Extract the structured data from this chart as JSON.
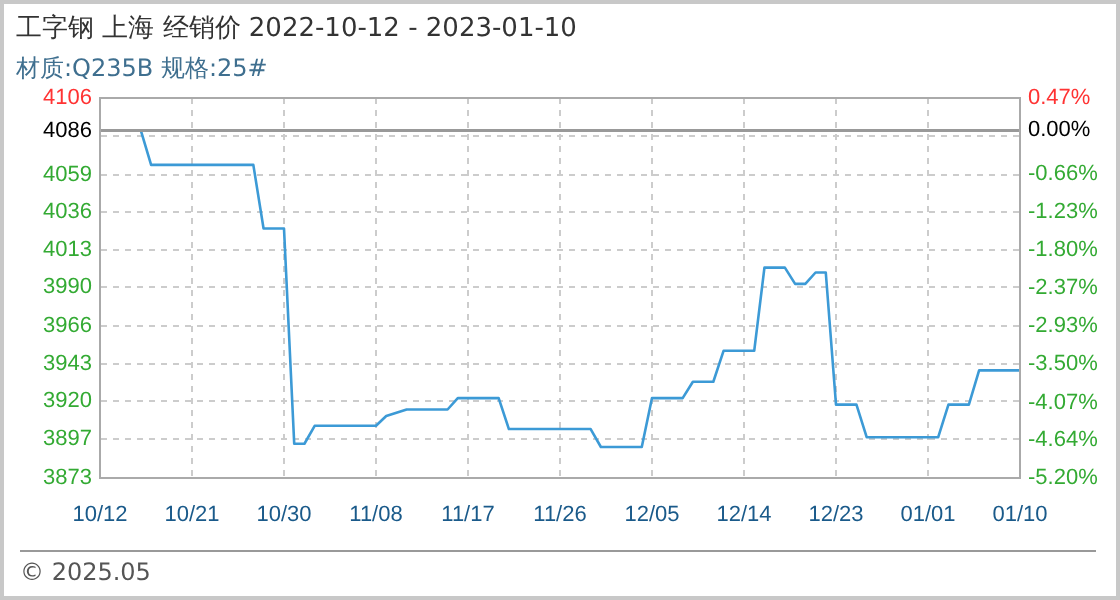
{
  "chart_data": {
    "type": "line",
    "title": "工字钢 上海 经销价 2022-10-12 - 2023-01-10",
    "subtitle": "材质:Q235B 规格:25#",
    "annotations": [
      "© 2025.05"
    ],
    "x": [
      "2022-10-12",
      "2022-10-16",
      "2022-10-17",
      "2022-10-27",
      "2022-10-28",
      "2022-10-30",
      "2022-10-31",
      "2022-11-01",
      "2022-11-02",
      "2022-11-08",
      "2022-11-09",
      "2022-11-11",
      "2022-11-15",
      "2022-11-16",
      "2022-11-20",
      "2022-11-21",
      "2022-11-29",
      "2022-11-30",
      "2022-12-04",
      "2022-12-05",
      "2022-12-08",
      "2022-12-09",
      "2022-12-11",
      "2022-12-12",
      "2022-12-15",
      "2022-12-16",
      "2022-12-18",
      "2022-12-19",
      "2022-12-20",
      "2022-12-21",
      "2022-12-22",
      "2022-12-23",
      "2022-12-25",
      "2022-12-26",
      "2023-01-02",
      "2023-01-03",
      "2023-01-05",
      "2023-01-06",
      "2023-01-10"
    ],
    "series": [
      {
        "color": "#3c9ad6",
        "values": [
          4086,
          4086,
          4065,
          4065,
          4026,
          4026,
          3894,
          3894,
          3905,
          3905,
          3911,
          3915,
          3915,
          3922,
          3922,
          3903,
          3903,
          3892,
          3892,
          3922,
          3922,
          3932,
          3932,
          3951,
          3951,
          4002,
          4002,
          3992,
          3992,
          3999,
          3999,
          3918,
          3918,
          3898,
          3898,
          3918,
          3918,
          3939,
          3939
        ]
      }
    ],
    "xlim": [
      "2022-10-12",
      "2023-01-10"
    ],
    "xticks": [
      {
        "value": "2022-10-12",
        "label": "10/12"
      },
      {
        "value": "2022-10-21",
        "label": "10/21"
      },
      {
        "value": "2022-10-30",
        "label": "10/30"
      },
      {
        "value": "2022-11-08",
        "label": "11/08"
      },
      {
        "value": "2022-11-17",
        "label": "11/17"
      },
      {
        "value": "2022-11-26",
        "label": "11/26"
      },
      {
        "value": "2022-12-05",
        "label": "12/05"
      },
      {
        "value": "2022-12-14",
        "label": "12/14"
      },
      {
        "value": "2022-12-23",
        "label": "12/23"
      },
      {
        "value": "2023-01-01",
        "label": "01/01"
      },
      {
        "value": "2023-01-10",
        "label": "01/10"
      }
    ],
    "ylim": [
      3873,
      4106
    ],
    "yticks": [
      3873,
      3897,
      3920,
      3943,
      3966,
      3990,
      4013,
      4036,
      4059,
      {
        "value": 4083,
        "label": null
      },
      4106
    ],
    "y2lim": [
      -5.2,
      0.47
    ],
    "y2ticks": [
      {
        "value": -5.2,
        "label": "-5.20%"
      },
      {
        "value": -4.637,
        "label": "-4.64%"
      },
      {
        "value": -4.074,
        "label": "-4.07%"
      },
      {
        "value": -3.505,
        "label": "-3.50%"
      },
      {
        "value": -2.935,
        "label": "-2.93%"
      },
      {
        "value": -2.365,
        "label": "-2.37%"
      },
      {
        "value": -1.8,
        "label": "-1.80%"
      },
      {
        "value": -1.23,
        "label": "-1.23%"
      },
      {
        "value": -0.66,
        "label": "-0.66%"
      },
      {
        "value": -0.097,
        "label": null
      },
      {
        "value": 0,
        "label": "0.00%"
      },
      {
        "value": 0.47,
        "label": "0.47%"
      }
    ],
    "ref_lines": [
      {
        "axis": "y",
        "value": 4086,
        "label": "4086",
        "color": "#999999"
      }
    ],
    "grid": true,
    "marker": "none",
    "line_style": "solid"
  }
}
